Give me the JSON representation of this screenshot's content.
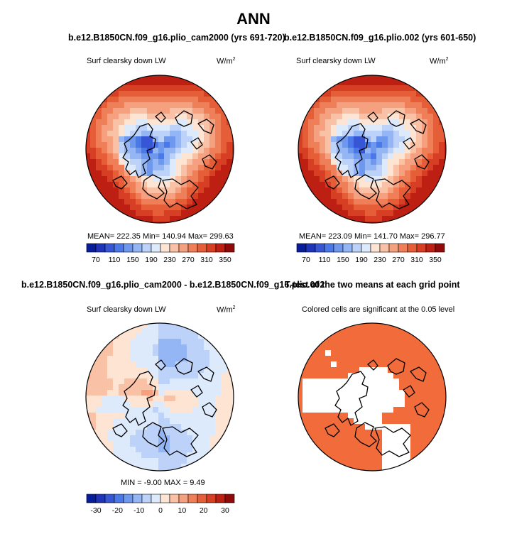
{
  "title": "ANN",
  "colors": {
    "abs_scale": [
      "#081d9a",
      "#1f35b8",
      "#3656d6",
      "#4a78e6",
      "#6e97ee",
      "#95b6f4",
      "#bcd2f8",
      "#ddeafb",
      "#fde4d3",
      "#f9c2a6",
      "#f5a07e",
      "#ef7f58",
      "#e65e37",
      "#d63f23",
      "#bd2012",
      "#8f0a08"
    ],
    "diff_scale": [
      "#081d9a",
      "#1f35b8",
      "#3656d6",
      "#4a78e6",
      "#6e97ee",
      "#95b6f4",
      "#bcd2f8",
      "#ddeafb",
      "#fde4d3",
      "#f9c2a6",
      "#f5a07e",
      "#ef7f58",
      "#e65e37",
      "#d63f23",
      "#bd2012",
      "#8f0a08"
    ],
    "significant": "#f26b3a",
    "land": "#000000"
  },
  "chart_data": [
    {
      "type": "heatmap",
      "title": "b.e12.B1850CN.f09_g16.plio_cam2000 (yrs 691-720)",
      "variable": "Surf clearsky down LW",
      "units_base": "W/m",
      "units_exp": "2",
      "projection": "polar stereographic (Arctic)",
      "stats": "MEAN= 222.35   Min= 140.94   Max= 299.63",
      "mean": 222.35,
      "min": 140.94,
      "max": 299.63,
      "colorbar_levels": [
        70,
        90,
        110,
        130,
        150,
        170,
        190,
        210,
        230,
        250,
        270,
        290,
        310,
        330,
        350
      ],
      "colorbar_labels": [
        "70",
        "110",
        "150",
        "190",
        "230",
        "270",
        "310",
        "350"
      ]
    },
    {
      "type": "heatmap",
      "title": "b.e12.B1850CN.f09_g16.plio.002 (yrs 601-650)",
      "variable": "Surf clearsky down LW",
      "units_base": "W/m",
      "units_exp": "2",
      "projection": "polar stereographic (Arctic)",
      "stats": "MEAN= 223.09   Min= 141.70   Max= 296.77",
      "mean": 223.09,
      "min": 141.7,
      "max": 296.77,
      "colorbar_levels": [
        70,
        90,
        110,
        130,
        150,
        170,
        190,
        210,
        230,
        250,
        270,
        290,
        310,
        330,
        350
      ],
      "colorbar_labels": [
        "70",
        "110",
        "150",
        "190",
        "230",
        "270",
        "310",
        "350"
      ]
    },
    {
      "type": "heatmap",
      "title": "b.e12.B1850CN.f09_g16.plio_cam2000 - b.e12.B1850CN.f09_g16.plio.002",
      "variable": "Surf clearsky down LW",
      "units_base": "W/m",
      "units_exp": "2",
      "projection": "polar stereographic (Arctic)",
      "stats": "MIN =   -9.00  MAX =    9.49",
      "min": -9.0,
      "max": 9.49,
      "colorbar_levels": [
        -35,
        -30,
        -25,
        -20,
        -15,
        -10,
        -5,
        0,
        5,
        10,
        15,
        20,
        25,
        30,
        35
      ],
      "colorbar_labels": [
        "-30",
        "-20",
        "-10",
        "0",
        "10",
        "20",
        "30"
      ]
    },
    {
      "type": "heatmap",
      "title": "T-test of the two means at each grid point",
      "variable": "Colored cells are significant at the 0.05 level",
      "projection": "polar stereographic (Arctic)",
      "significance_level": 0.05
    }
  ]
}
